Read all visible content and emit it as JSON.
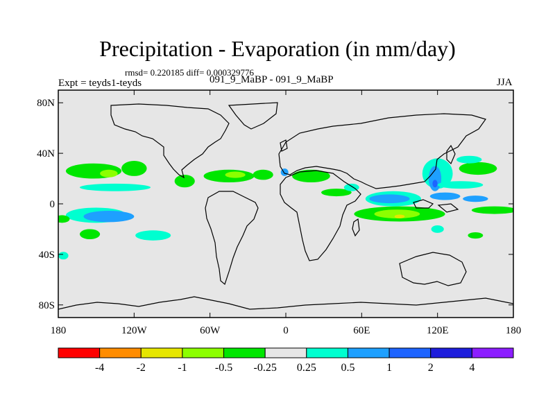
{
  "header": {
    "title": "Precipitation - Evaporation (in mm/day)",
    "stats": "rmsd= 0.220185 diff= 0.000329776",
    "expt": "Expt = teyds1-teyds",
    "case": "091_9_MaBP - 091_9_MaBP",
    "season": "JJA"
  },
  "chart_data": {
    "type": "heatmap",
    "title": "Precipitation - Evaporation (in mm/day)",
    "xlabel": "",
    "ylabel": "",
    "xlim": [
      -180,
      180
    ],
    "ylim": [
      -90,
      90
    ],
    "x_ticks": [
      {
        "value": -180,
        "label": "180"
      },
      {
        "value": -120,
        "label": "120W"
      },
      {
        "value": -60,
        "label": "60W"
      },
      {
        "value": 0,
        "label": "0"
      },
      {
        "value": 60,
        "label": "60E"
      },
      {
        "value": 120,
        "label": "120E"
      },
      {
        "value": 180,
        "label": "180"
      }
    ],
    "y_ticks": [
      {
        "value": 80,
        "label": "80N"
      },
      {
        "value": 40,
        "label": "40N"
      },
      {
        "value": 0,
        "label": "0"
      },
      {
        "value": -40,
        "label": "40S"
      },
      {
        "value": -80,
        "label": "80S"
      }
    ],
    "colorbar": {
      "colors": [
        "#ff0000",
        "#ff8c00",
        "#e6e600",
        "#8cff00",
        "#00e600",
        "#e6e6e6",
        "#00ffd0",
        "#1ea0ff",
        "#1e64ff",
        "#1e1edc",
        "#8c1eff"
      ],
      "labels": [
        "-4",
        "-2",
        "-1",
        "-0.5",
        "-0.25",
        "0.25",
        "0.5",
        "1",
        "2",
        "4"
      ]
    },
    "regions": [
      {
        "name": "north-pacific-green",
        "lon": -152,
        "lat": 26,
        "rx": 22,
        "ry": 6,
        "color": "#00e600"
      },
      {
        "name": "north-pacific-lightgreen",
        "lon": -140,
        "lat": 24,
        "rx": 7,
        "ry": 3,
        "color": "#8cff00"
      },
      {
        "name": "north-pacific-green-east",
        "lon": -120,
        "lat": 28,
        "rx": 10,
        "ry": 6,
        "color": "#00e600"
      },
      {
        "name": "east-pacific-cyan",
        "lon": -135,
        "lat": 13,
        "rx": 28,
        "ry": 3,
        "color": "#00ffd0"
      },
      {
        "name": "itcz-south-cyan",
        "lon": -150,
        "lat": -9,
        "rx": 24,
        "ry": 6,
        "color": "#00ffd0"
      },
      {
        "name": "itcz-south-blue",
        "lon": -140,
        "lat": -10,
        "rx": 20,
        "ry": 4.5,
        "color": "#1ea0ff"
      },
      {
        "name": "west-green",
        "lon": -177,
        "lat": -12,
        "rx": 6,
        "ry": 3,
        "color": "#00e600"
      },
      {
        "name": "sh-pacific-green",
        "lon": -155,
        "lat": -24,
        "rx": 8,
        "ry": 4,
        "color": "#00e600"
      },
      {
        "name": "sh-pacific-cyan",
        "lon": -105,
        "lat": -25,
        "rx": 14,
        "ry": 4,
        "color": "#00ffd0"
      },
      {
        "name": "sh-small-cyan",
        "lon": -176,
        "lat": -41,
        "rx": 4,
        "ry": 3,
        "color": "#00ffd0"
      },
      {
        "name": "central-america-green",
        "lon": -80,
        "lat": 18,
        "rx": 8,
        "ry": 5,
        "color": "#00e600"
      },
      {
        "name": "atlantic-green",
        "lon": -45,
        "lat": 22,
        "rx": 20,
        "ry": 5,
        "color": "#00e600"
      },
      {
        "name": "atlantic-lightgreen",
        "lon": -40,
        "lat": 23,
        "rx": 8,
        "ry": 2.5,
        "color": "#8cff00"
      },
      {
        "name": "atlantic-green-east",
        "lon": -18,
        "lat": 23,
        "rx": 8,
        "ry": 4,
        "color": "#00e600"
      },
      {
        "name": "europe-cyan",
        "lon": -1,
        "lat": 25,
        "rx": 3,
        "ry": 3,
        "color": "#1ea0ff"
      },
      {
        "name": "africa-green",
        "lon": 20,
        "lat": 22,
        "rx": 15,
        "ry": 5,
        "color": "#00e600"
      },
      {
        "name": "arabia-green",
        "lon": 40,
        "lat": 9,
        "rx": 12,
        "ry": 3,
        "color": "#00e600"
      },
      {
        "name": "arabia-cyan",
        "lon": 52,
        "lat": 13,
        "rx": 6,
        "ry": 3,
        "color": "#00ffd0"
      },
      {
        "name": "indian-ocean-cyan",
        "lon": 85,
        "lat": 4,
        "rx": 22,
        "ry": 6,
        "color": "#00ffd0"
      },
      {
        "name": "indian-ocean-blue",
        "lon": 82,
        "lat": 4,
        "rx": 16,
        "ry": 3.5,
        "color": "#1ea0ff"
      },
      {
        "name": "south-indian-green",
        "lon": 90,
        "lat": -8,
        "rx": 36,
        "ry": 6,
        "color": "#00e600"
      },
      {
        "name": "south-indian-lightgreen",
        "lon": 88,
        "lat": -8,
        "rx": 18,
        "ry": 3.5,
        "color": "#8cff00"
      },
      {
        "name": "south-indian-yellow",
        "lon": 90,
        "lat": -10,
        "rx": 4,
        "ry": 1.5,
        "color": "#e6e600"
      },
      {
        "name": "asia-cyan",
        "lon": 120,
        "lat": 24,
        "rx": 12,
        "ry": 12,
        "color": "#00ffd0"
      },
      {
        "name": "asia-blue",
        "lon": 118,
        "lat": 20,
        "rx": 5,
        "ry": 10,
        "color": "#1ea0ff"
      },
      {
        "name": "asia-darkblue",
        "lon": 118,
        "lat": 16,
        "rx": 2,
        "ry": 3,
        "color": "#1e64ff"
      },
      {
        "name": "west-pacific-green",
        "lon": 152,
        "lat": 28,
        "rx": 15,
        "ry": 5,
        "color": "#00e600"
      },
      {
        "name": "west-pacific-cyan",
        "lon": 138,
        "lat": 15,
        "rx": 18,
        "ry": 3,
        "color": "#00ffd0"
      },
      {
        "name": "west-pacific-blue",
        "lon": 126,
        "lat": 6,
        "rx": 12,
        "ry": 3,
        "color": "#1ea0ff"
      },
      {
        "name": "north-pacific-cyan",
        "lon": 145,
        "lat": 35,
        "rx": 10,
        "ry": 3,
        "color": "#00ffd0"
      },
      {
        "name": "pacific-east-green",
        "lon": 165,
        "lat": -5,
        "rx": 18,
        "ry": 3,
        "color": "#00e600"
      },
      {
        "name": "pacific-east-blue",
        "lon": 150,
        "lat": 4,
        "rx": 10,
        "ry": 2.5,
        "color": "#1ea0ff"
      },
      {
        "name": "sh-east-green",
        "lon": 150,
        "lat": -25,
        "rx": 6,
        "ry": 2.5,
        "color": "#00e600"
      },
      {
        "name": "sh-east-cyan",
        "lon": 120,
        "lat": -20,
        "rx": 5,
        "ry": 3,
        "color": "#00ffd0"
      }
    ]
  }
}
